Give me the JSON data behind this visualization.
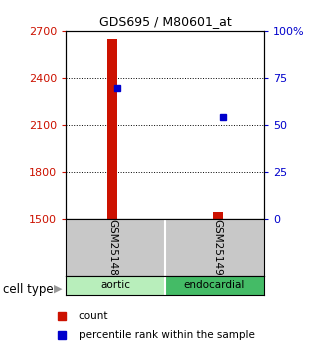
{
  "title": "GDS695 / M80601_at",
  "samples": [
    "GSM25148",
    "GSM25149"
  ],
  "cell_types": [
    "aortic",
    "endocardial"
  ],
  "bar_bottoms": [
    1500,
    1500
  ],
  "bar_tops": [
    2650,
    1542
  ],
  "percentile_values": [
    2335,
    2150
  ],
  "ylim": [
    1500,
    2700
  ],
  "yticks_left": [
    1500,
    1800,
    2100,
    2400,
    2700
  ],
  "yticks_right_vals": [
    1500,
    1800,
    2100,
    2400,
    2700
  ],
  "yticks_right_labels": [
    "0",
    "25",
    "50",
    "75",
    "100%"
  ],
  "bar_color": "#cc1100",
  "blue_color": "#0000cc",
  "left_tick_color": "#cc1100",
  "right_tick_color": "#0000cc",
  "gray_box_color": "#c8c8c8",
  "aortic_green": "#b8eebb",
  "endocardial_green": "#44bb66",
  "cell_type_label": "cell type",
  "legend_count": "count",
  "legend_pct": "percentile rank within the sample",
  "bar_width": 0.08,
  "plot_bg": "#ffffff",
  "x_positions": [
    0.35,
    1.15
  ],
  "xlim": [
    0,
    1.5
  ]
}
